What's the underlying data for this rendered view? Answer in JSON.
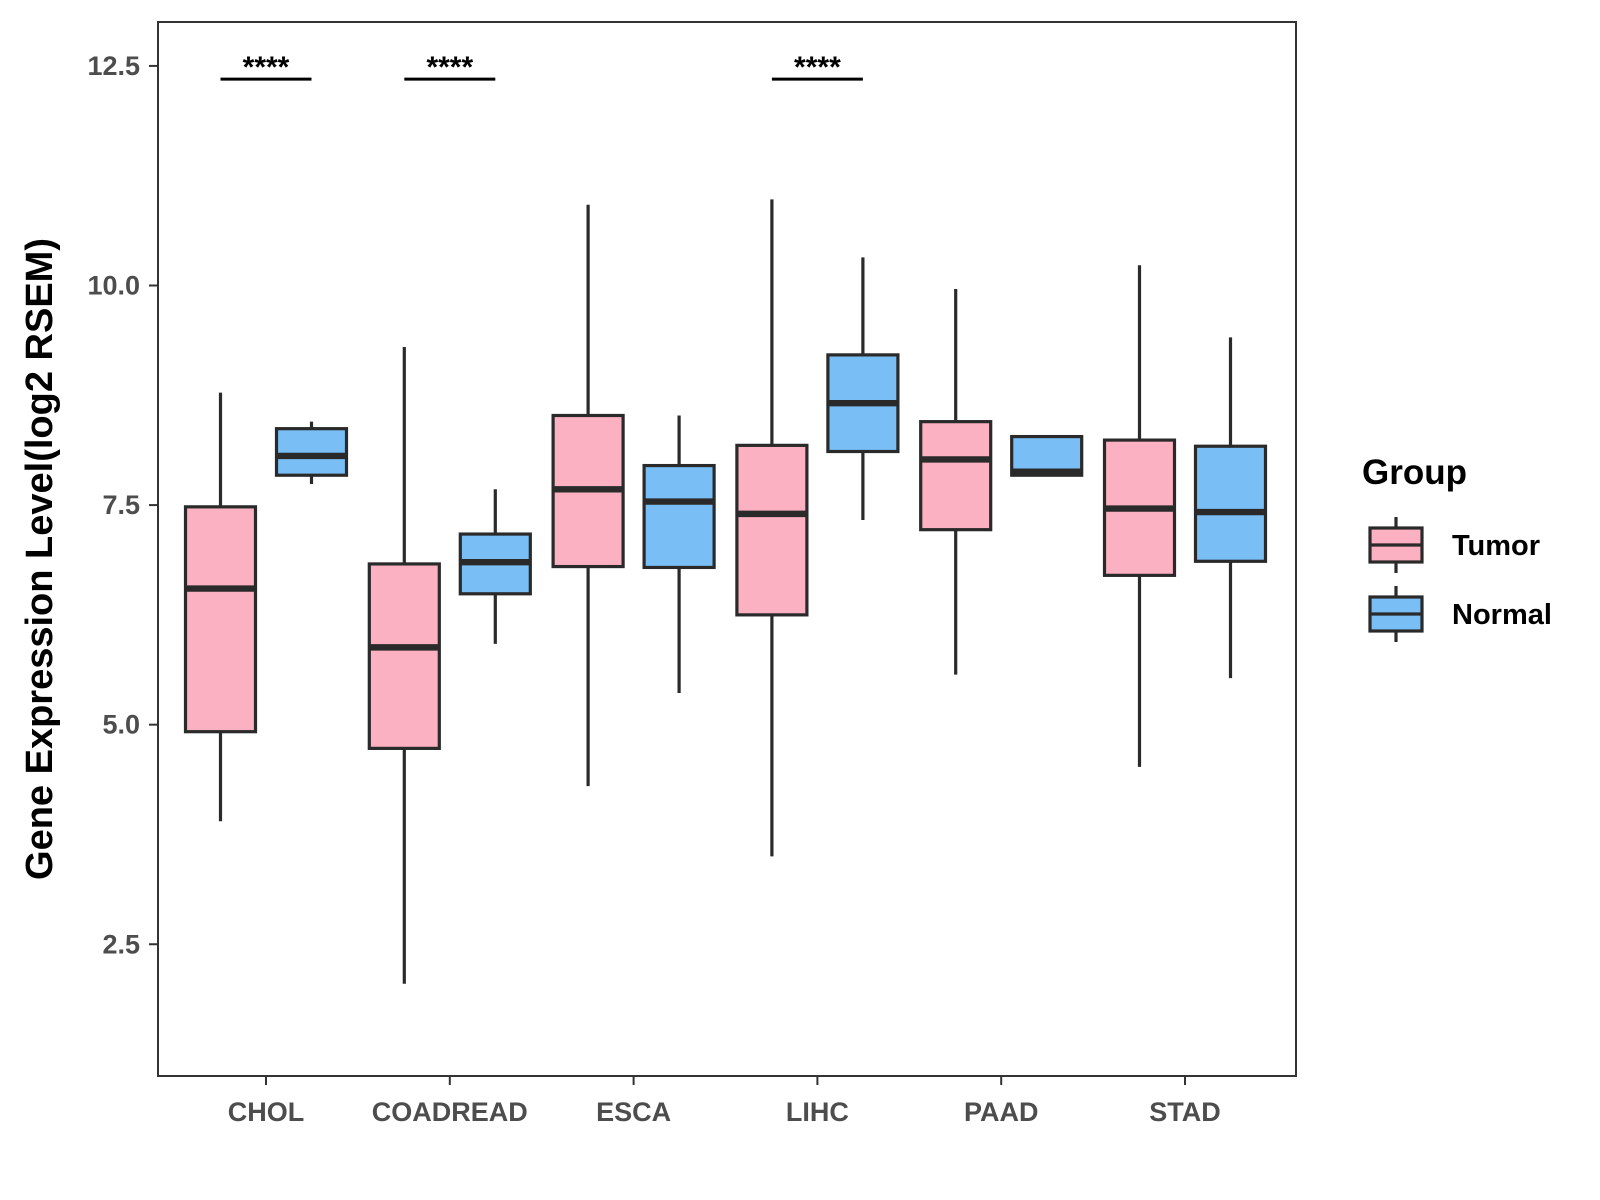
{
  "chart_data": {
    "type": "boxplot",
    "title": "",
    "xlabel": "",
    "ylabel": "Gene Expression Level(log2 RSEM)",
    "ylim": [
      1.0,
      13.0
    ],
    "yticks": [
      2.5,
      5.0,
      7.5,
      10.0,
      12.5
    ],
    "ytick_labels": [
      "2.5",
      "5.0",
      "7.5",
      "10.0",
      "12.5"
    ],
    "categories": [
      "CHOL",
      "COADREAD",
      "ESCA",
      "LIHC",
      "PAAD",
      "STAD"
    ],
    "legend": {
      "title": "Group",
      "position": "right"
    },
    "colors": {
      "Tumor": "#FBB1C2",
      "Normal": "#79BEF5",
      "outline": "#2a2a2a"
    },
    "series": [
      {
        "name": "Tumor",
        "boxes": [
          {
            "min": 3.9,
            "q1": 4.92,
            "median": 6.55,
            "q3": 7.48,
            "max": 8.78
          },
          {
            "min": 2.05,
            "q1": 4.73,
            "median": 5.88,
            "q3": 6.83,
            "max": 9.3
          },
          {
            "min": 4.3,
            "q1": 6.8,
            "median": 7.68,
            "q3": 8.52,
            "max": 10.92
          },
          {
            "min": 3.5,
            "q1": 6.25,
            "median": 7.4,
            "q3": 8.18,
            "max": 10.98
          },
          {
            "min": 5.57,
            "q1": 7.22,
            "median": 8.02,
            "q3": 8.45,
            "max": 9.96
          },
          {
            "min": 4.52,
            "q1": 6.7,
            "median": 7.46,
            "q3": 8.24,
            "max": 10.23
          }
        ]
      },
      {
        "name": "Normal",
        "boxes": [
          {
            "min": 7.74,
            "q1": 7.84,
            "median": 8.06,
            "q3": 8.37,
            "max": 8.45
          },
          {
            "min": 5.92,
            "q1": 6.49,
            "median": 6.85,
            "q3": 7.17,
            "max": 7.68
          },
          {
            "min": 5.36,
            "q1": 6.79,
            "median": 7.54,
            "q3": 7.95,
            "max": 8.52
          },
          {
            "min": 7.33,
            "q1": 8.11,
            "median": 8.66,
            "q3": 9.21,
            "max": 10.32
          },
          {
            "min": 7.84,
            "q1": 7.84,
            "median": 7.88,
            "q3": 8.28,
            "max": 8.28
          },
          {
            "min": 5.53,
            "q1": 6.86,
            "median": 7.42,
            "q3": 8.17,
            "max": 9.41
          }
        ]
      }
    ],
    "significance": [
      {
        "category": "CHOL",
        "label": "****",
        "y": 12.35
      },
      {
        "category": "COADREAD",
        "label": "****",
        "y": 12.35
      },
      {
        "category": "LIHC",
        "label": "****",
        "y": 12.35
      }
    ]
  }
}
